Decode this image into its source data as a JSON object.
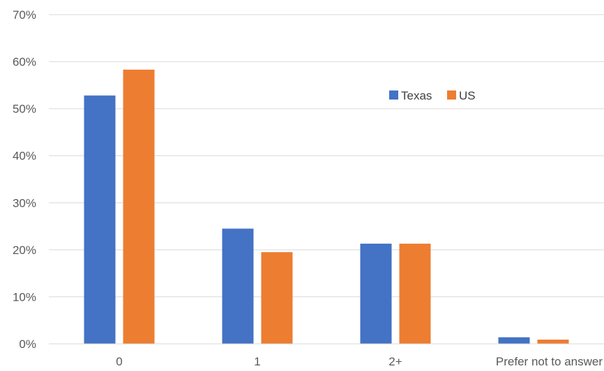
{
  "chart_data": {
    "type": "bar",
    "categories": [
      "0",
      "1",
      "2+",
      "Prefer not to answer"
    ],
    "series": [
      {
        "name": "Texas",
        "color": "#4472C4",
        "values": [
          52.8,
          24.5,
          21.3,
          1.4
        ]
      },
      {
        "name": "US",
        "color": "#ED7D31",
        "values": [
          58.3,
          19.5,
          21.3,
          0.9
        ]
      }
    ],
    "ylim": [
      0,
      70
    ],
    "yticks": [
      "0%",
      "10%",
      "20%",
      "30%",
      "40%",
      "50%",
      "60%",
      "70%"
    ],
    "grid": true,
    "legend_position": "upper-right-inside"
  }
}
